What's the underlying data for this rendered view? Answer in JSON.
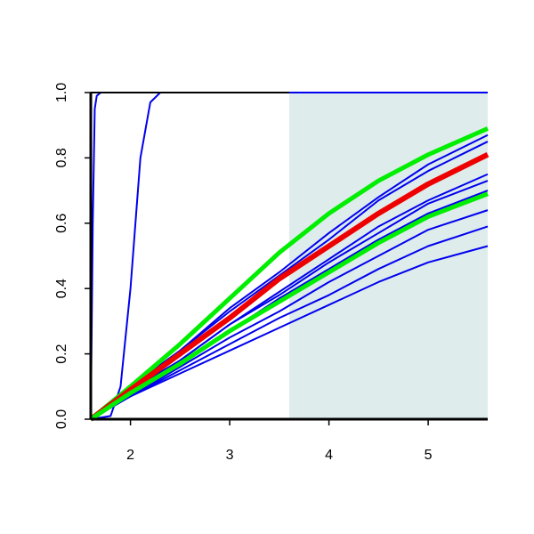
{
  "chart_data": {
    "type": "line",
    "x": [
      1.6,
      2,
      2.5,
      3,
      3.5,
      4,
      4.5,
      5,
      5.6
    ],
    "xlim": [
      1.6,
      5.6
    ],
    "ylim": [
      0,
      1
    ],
    "xticks": [
      2,
      3,
      4,
      5
    ],
    "yticks": [
      {
        "value": 0,
        "label": "0.0"
      },
      0.2,
      0.4,
      0.6,
      0.8,
      {
        "value": 1,
        "label": "1.0"
      }
    ],
    "shade_x": [
      3.6,
      5.6
    ],
    "shade_color": "#deecec",
    "series": [
      {
        "color": "#0000ee",
        "line_width": 2,
        "x": [
          1.6,
          1.62,
          1.64,
          1.66,
          1.7,
          5.6
        ],
        "values": [
          0,
          0.6,
          0.95,
          0.99,
          1,
          1
        ]
      },
      {
        "color": "#0000ee",
        "line_width": 2,
        "x": [
          1.6,
          1.8,
          1.9,
          2.0,
          2.05,
          2.1,
          2.2,
          2.3,
          5.6
        ],
        "values": [
          0,
          0.01,
          0.1,
          0.4,
          0.6,
          0.8,
          0.97,
          1,
          1
        ]
      },
      {
        "color": "#0000ee",
        "line_width": 2,
        "values": [
          0,
          0.1,
          0.21,
          0.34,
          0.45,
          0.57,
          0.68,
          0.78,
          0.87
        ]
      },
      {
        "color": "#0000ee",
        "line_width": 2,
        "values": [
          0,
          0.1,
          0.21,
          0.33,
          0.44,
          0.55,
          0.67,
          0.76,
          0.85
        ]
      },
      {
        "color": "#0000ee",
        "line_width": 2,
        "values": [
          0,
          0.09,
          0.18,
          0.29,
          0.39,
          0.49,
          0.59,
          0.67,
          0.75
        ]
      },
      {
        "color": "#0000ee",
        "line_width": 2,
        "values": [
          0,
          0.08,
          0.18,
          0.29,
          0.38,
          0.48,
          0.57,
          0.66,
          0.73
        ]
      },
      {
        "color": "#0000ee",
        "line_width": 2,
        "values": [
          0,
          0.08,
          0.17,
          0.27,
          0.37,
          0.46,
          0.55,
          0.63,
          0.7
        ]
      },
      {
        "color": "#0000ee",
        "line_width": 2,
        "values": [
          0,
          0.07,
          0.16,
          0.25,
          0.33,
          0.42,
          0.5,
          0.58,
          0.64
        ]
      },
      {
        "color": "#0000ee",
        "line_width": 2,
        "values": [
          0,
          0.07,
          0.15,
          0.23,
          0.31,
          0.38,
          0.46,
          0.53,
          0.59
        ]
      },
      {
        "color": "#0000ee",
        "line_width": 2,
        "values": [
          0,
          0.07,
          0.14,
          0.21,
          0.28,
          0.35,
          0.42,
          0.48,
          0.53
        ]
      },
      {
        "color": "#00ee00",
        "line_width": 5,
        "values": [
          0,
          0.1,
          0.23,
          0.37,
          0.51,
          0.63,
          0.73,
          0.81,
          0.89
        ]
      },
      {
        "color": "#ee0000",
        "line_width": 6,
        "values": [
          0,
          0.09,
          0.2,
          0.31,
          0.43,
          0.53,
          0.63,
          0.72,
          0.81
        ]
      },
      {
        "color": "#00ee00",
        "line_width": 5,
        "values": [
          0,
          0.08,
          0.17,
          0.27,
          0.36,
          0.45,
          0.54,
          0.62,
          0.69
        ]
      }
    ]
  }
}
